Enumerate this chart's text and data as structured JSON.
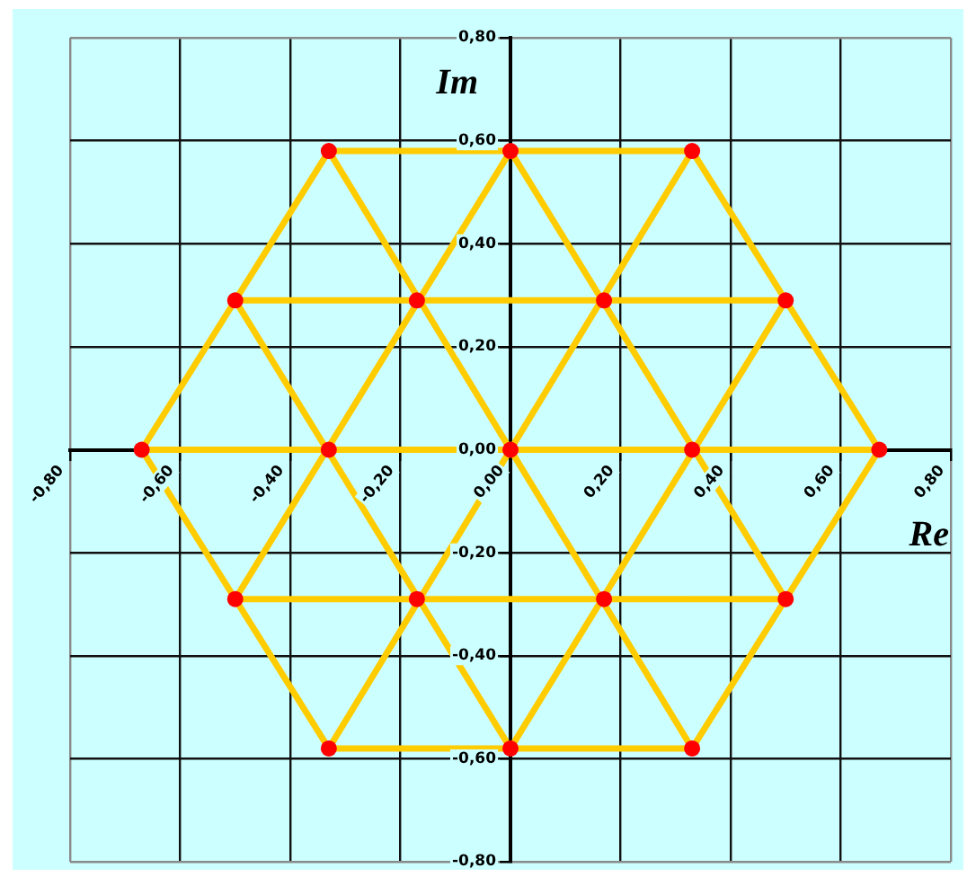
{
  "chart_data": {
    "type": "scatter",
    "xlabel": "Re",
    "ylabel": "Im",
    "xlim": [
      -0.8,
      0.8
    ],
    "ylim": [
      -0.8,
      0.8
    ],
    "xticks": [
      {
        "value": -0.8,
        "label": "-0,80"
      },
      {
        "value": -0.6,
        "label": "-0,60"
      },
      {
        "value": -0.4,
        "label": "-0,40"
      },
      {
        "value": -0.2,
        "label": "-0,20"
      },
      {
        "value": 0,
        "label": "0,00"
      },
      {
        "value": 0.2,
        "label": "0,20"
      },
      {
        "value": 0.4,
        "label": "0,40"
      },
      {
        "value": 0.6,
        "label": "0,60"
      },
      {
        "value": 0.8,
        "label": "0,80"
      }
    ],
    "yticks": [
      {
        "value": -0.8,
        "label": "-0,80"
      },
      {
        "value": -0.6,
        "label": "-0,60"
      },
      {
        "value": -0.4,
        "label": "-0,40"
      },
      {
        "value": -0.2,
        "label": "-0,20"
      },
      {
        "value": 0,
        "label": "0,00"
      },
      {
        "value": 0.2,
        "label": "0,20"
      },
      {
        "value": 0.4,
        "label": "0,40"
      },
      {
        "value": 0.6,
        "label": "0,60"
      },
      {
        "value": 0.8,
        "label": "0,80"
      }
    ],
    "grid": true,
    "series": [
      {
        "type": "line",
        "color": "#ffcc00",
        "x": [
          -0.33,
          0.33
        ],
        "values": [
          0.58,
          0.58
        ]
      },
      {
        "type": "line",
        "color": "#ffcc00",
        "x": [
          -0.5,
          0.5
        ],
        "values": [
          0.29,
          0.29
        ]
      },
      {
        "type": "line",
        "color": "#ffcc00",
        "x": [
          -0.67,
          0.67
        ],
        "values": [
          0,
          0
        ]
      },
      {
        "type": "line",
        "color": "#ffcc00",
        "x": [
          -0.5,
          0.5
        ],
        "values": [
          -0.29,
          -0.29
        ]
      },
      {
        "type": "line",
        "color": "#ffcc00",
        "x": [
          -0.33,
          0.33
        ],
        "values": [
          -0.58,
          -0.58
        ]
      },
      {
        "type": "line",
        "color": "#ffcc00",
        "x": [
          -0.67,
          -0.33
        ],
        "values": [
          0,
          0.58
        ]
      },
      {
        "type": "line",
        "color": "#ffcc00",
        "x": [
          -0.5,
          0
        ],
        "values": [
          -0.29,
          0.58
        ]
      },
      {
        "type": "line",
        "color": "#ffcc00",
        "x": [
          -0.33,
          0.33
        ],
        "values": [
          -0.58,
          0.58
        ]
      },
      {
        "type": "line",
        "color": "#ffcc00",
        "x": [
          0,
          0.5
        ],
        "values": [
          -0.58,
          0.29
        ]
      },
      {
        "type": "line",
        "color": "#ffcc00",
        "x": [
          0.33,
          0.67
        ],
        "values": [
          -0.58,
          0
        ]
      },
      {
        "type": "line",
        "color": "#ffcc00",
        "x": [
          -0.67,
          -0.33
        ],
        "values": [
          0,
          -0.58
        ]
      },
      {
        "type": "line",
        "color": "#ffcc00",
        "x": [
          -0.5,
          0
        ],
        "values": [
          0.29,
          -0.58
        ]
      },
      {
        "type": "line",
        "color": "#ffcc00",
        "x": [
          -0.33,
          0.33
        ],
        "values": [
          0.58,
          -0.58
        ]
      },
      {
        "type": "line",
        "color": "#ffcc00",
        "x": [
          0,
          0.5
        ],
        "values": [
          0.58,
          -0.29
        ]
      },
      {
        "type": "line",
        "color": "#ffcc00",
        "x": [
          0.33,
          0.67
        ],
        "values": [
          0.58,
          0
        ]
      },
      {
        "color": "#ff0000",
        "marker": "circle",
        "x": [
          -0.33,
          0,
          0.33,
          -0.5,
          -0.17,
          0.17,
          0.5,
          -0.67,
          -0.33,
          0,
          0.33,
          0.67,
          -0.5,
          -0.17,
          0.17,
          0.5,
          -0.33,
          0,
          0.33
        ],
        "values": [
          0.58,
          0.58,
          0.58,
          0.29,
          0.29,
          0.29,
          0.29,
          0,
          0,
          0,
          0,
          0,
          -0.29,
          -0.29,
          -0.29,
          -0.29,
          -0.58,
          -0.58,
          -0.58
        ]
      }
    ]
  }
}
